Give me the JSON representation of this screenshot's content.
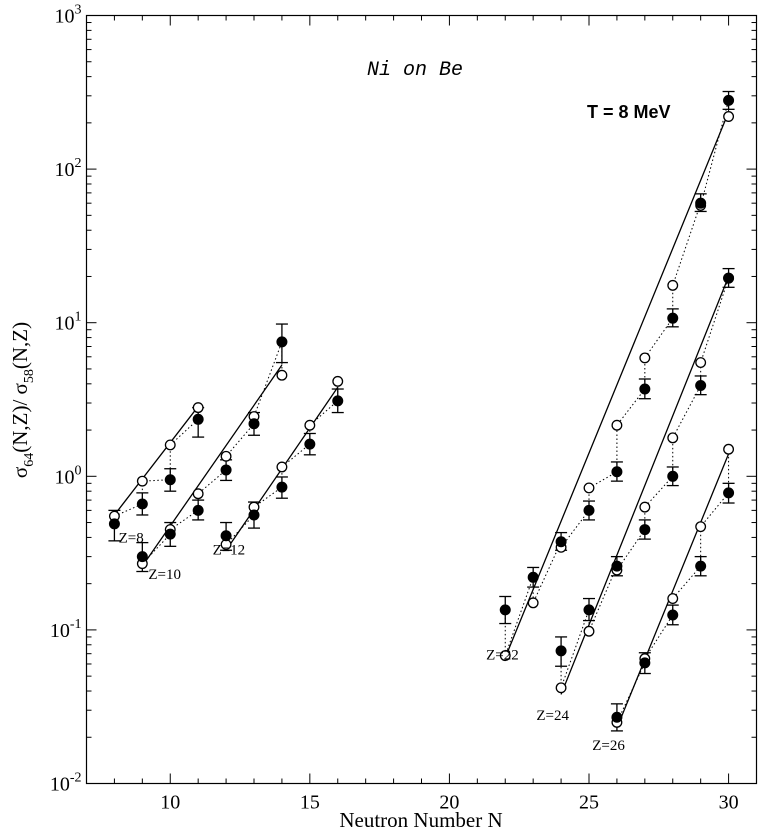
{
  "chart_data": {
    "type": "scatter",
    "title": "Ni on Be",
    "annotation": "T = 8 MeV",
    "xlabel": "Neutron Number N",
    "ylabel": {
      "pre": "σ",
      "sub1": "64",
      "mid": "(N,Z)/ σ",
      "sub2": "58",
      "post": "(N,Z)"
    },
    "xlim": [
      7,
      31
    ],
    "ylim": [
      0.01,
      1000
    ],
    "yscale": "log",
    "xticks": [
      10,
      15,
      20,
      25,
      30
    ],
    "yticks": [
      {
        "value": 0.01,
        "base": "10",
        "exp": "-2"
      },
      {
        "value": 0.1,
        "base": "10",
        "exp": "-1"
      },
      {
        "value": 1,
        "base": "10",
        "exp": "0"
      },
      {
        "value": 10,
        "base": "10",
        "exp": "1"
      },
      {
        "value": 100,
        "base": "10",
        "exp": "2"
      },
      {
        "value": 1000,
        "base": "10",
        "exp": "3"
      }
    ],
    "groups": [
      {
        "label": "Z=8",
        "label_at": [
          8.6,
          0.37
        ],
        "experiment": [
          {
            "x": 8,
            "y": 0.49,
            "lo": 0.38,
            "hi": 0.6
          },
          {
            "x": 9,
            "y": 0.66,
            "lo": 0.56,
            "hi": 0.78
          },
          {
            "x": 10,
            "y": 0.95,
            "lo": 0.8,
            "hi": 1.12
          },
          {
            "x": 11,
            "y": 2.35,
            "lo": 1.8,
            "hi": 2.8
          }
        ],
        "model_open": [
          {
            "x": 8,
            "y": 0.55
          },
          {
            "x": 9,
            "y": 0.93
          },
          {
            "x": 10,
            "y": 1.6
          },
          {
            "x": 11,
            "y": 2.8
          }
        ],
        "fit": [
          {
            "x": 8,
            "y": 0.56
          },
          {
            "x": 11,
            "y": 2.85
          }
        ]
      },
      {
        "label": "Z=10",
        "label_at": [
          9.8,
          0.215
        ],
        "experiment": [
          {
            "x": 9,
            "y": 0.3,
            "lo": 0.24,
            "hi": 0.37
          },
          {
            "x": 10,
            "y": 0.42,
            "lo": 0.35,
            "hi": 0.5
          },
          {
            "x": 11,
            "y": 0.6,
            "lo": 0.52,
            "hi": 0.7
          },
          {
            "x": 12,
            "y": 1.1,
            "lo": 0.94,
            "hi": 1.28
          },
          {
            "x": 13,
            "y": 2.2,
            "lo": 1.85,
            "hi": 2.6
          },
          {
            "x": 14,
            "y": 7.5,
            "lo": 5.5,
            "hi": 9.8
          }
        ],
        "model_open": [
          {
            "x": 9,
            "y": 0.27
          },
          {
            "x": 10,
            "y": 0.45
          },
          {
            "x": 11,
            "y": 0.77
          },
          {
            "x": 12,
            "y": 1.35
          },
          {
            "x": 13,
            "y": 2.45
          },
          {
            "x": 14,
            "y": 4.55
          }
        ],
        "fit": [
          {
            "x": 9,
            "y": 0.26
          },
          {
            "x": 14,
            "y": 5.3
          }
        ]
      },
      {
        "label": "Z=12",
        "label_at": [
          12.1,
          0.31
        ],
        "experiment": [
          {
            "x": 12,
            "y": 0.41,
            "lo": 0.33,
            "hi": 0.5
          },
          {
            "x": 13,
            "y": 0.56,
            "lo": 0.46,
            "hi": 0.68
          },
          {
            "x": 14,
            "y": 0.85,
            "lo": 0.72,
            "hi": 0.99
          },
          {
            "x": 15,
            "y": 1.62,
            "lo": 1.38,
            "hi": 1.9
          },
          {
            "x": 16,
            "y": 3.1,
            "lo": 2.6,
            "hi": 3.7
          }
        ],
        "model_open": [
          {
            "x": 12,
            "y": 0.36
          },
          {
            "x": 13,
            "y": 0.63
          },
          {
            "x": 14,
            "y": 1.15
          },
          {
            "x": 15,
            "y": 2.15
          },
          {
            "x": 16,
            "y": 4.15
          }
        ],
        "fit": [
          {
            "x": 12,
            "y": 0.33
          },
          {
            "x": 16,
            "y": 3.8
          }
        ]
      },
      {
        "label": "Z=22",
        "label_at": [
          21.9,
          0.064
        ],
        "experiment": [
          {
            "x": 22,
            "y": 0.135,
            "lo": 0.11,
            "hi": 0.165
          },
          {
            "x": 23,
            "y": 0.22,
            "lo": 0.19,
            "hi": 0.255
          },
          {
            "x": 24,
            "y": 0.375,
            "lo": 0.33,
            "hi": 0.43
          },
          {
            "x": 25,
            "y": 0.6,
            "lo": 0.52,
            "hi": 0.69
          },
          {
            "x": 26,
            "y": 1.07,
            "lo": 0.93,
            "hi": 1.24
          },
          {
            "x": 27,
            "y": 3.7,
            "lo": 3.2,
            "hi": 4.3
          },
          {
            "x": 28,
            "y": 10.7,
            "lo": 9.4,
            "hi": 12.3
          },
          {
            "x": 29,
            "y": 60,
            "lo": 53,
            "hi": 69
          },
          {
            "x": 30,
            "y": 280,
            "lo": 245,
            "hi": 320
          }
        ],
        "model_open": [
          {
            "x": 22,
            "y": 0.068
          },
          {
            "x": 23,
            "y": 0.15
          },
          {
            "x": 24,
            "y": 0.345
          },
          {
            "x": 25,
            "y": 0.84
          },
          {
            "x": 26,
            "y": 2.15
          },
          {
            "x": 27,
            "y": 5.9
          },
          {
            "x": 28,
            "y": 17.5
          },
          {
            "x": 29,
            "y": 58
          },
          {
            "x": 30,
            "y": 220
          }
        ],
        "fit": [
          {
            "x": 22,
            "y": 0.066
          },
          {
            "x": 30,
            "y": 235
          }
        ]
      },
      {
        "label": "Z=24",
        "label_at": [
          23.7,
          0.026
        ],
        "experiment": [
          {
            "x": 24,
            "y": 0.073,
            "lo": 0.058,
            "hi": 0.09
          },
          {
            "x": 25,
            "y": 0.135,
            "lo": 0.115,
            "hi": 0.16
          },
          {
            "x": 26,
            "y": 0.26,
            "lo": 0.225,
            "hi": 0.3
          },
          {
            "x": 27,
            "y": 0.45,
            "lo": 0.39,
            "hi": 0.52
          },
          {
            "x": 28,
            "y": 1.0,
            "lo": 0.87,
            "hi": 1.15
          },
          {
            "x": 29,
            "y": 3.9,
            "lo": 3.4,
            "hi": 4.5
          },
          {
            "x": 30,
            "y": 19.5,
            "lo": 17,
            "hi": 22.5
          }
        ],
        "model_open": [
          {
            "x": 24,
            "y": 0.042
          },
          {
            "x": 25,
            "y": 0.098
          },
          {
            "x": 26,
            "y": 0.245
          },
          {
            "x": 27,
            "y": 0.63
          },
          {
            "x": 28,
            "y": 1.78
          },
          {
            "x": 29,
            "y": 5.5
          },
          {
            "x": 30,
            "y": 19.5
          }
        ],
        "fit": [
          {
            "x": 24,
            "y": 0.038
          },
          {
            "x": 30,
            "y": 20
          }
        ]
      },
      {
        "label": "Z=26",
        "label_at": [
          25.7,
          0.0165
        ],
        "experiment": [
          {
            "x": 26,
            "y": 0.027,
            "lo": 0.022,
            "hi": 0.033
          },
          {
            "x": 27,
            "y": 0.061,
            "lo": 0.052,
            "hi": 0.071
          },
          {
            "x": 28,
            "y": 0.125,
            "lo": 0.108,
            "hi": 0.145
          },
          {
            "x": 29,
            "y": 0.26,
            "lo": 0.225,
            "hi": 0.3
          },
          {
            "x": 30,
            "y": 0.78,
            "lo": 0.67,
            "hi": 0.9
          }
        ],
        "model_open": [
          {
            "x": 26,
            "y": 0.025
          },
          {
            "x": 27,
            "y": 0.065
          },
          {
            "x": 28,
            "y": 0.16
          },
          {
            "x": 29,
            "y": 0.47
          },
          {
            "x": 30,
            "y": 1.5
          }
        ],
        "fit": [
          {
            "x": 26,
            "y": 0.023
          },
          {
            "x": 30,
            "y": 1.4
          }
        ]
      }
    ]
  }
}
